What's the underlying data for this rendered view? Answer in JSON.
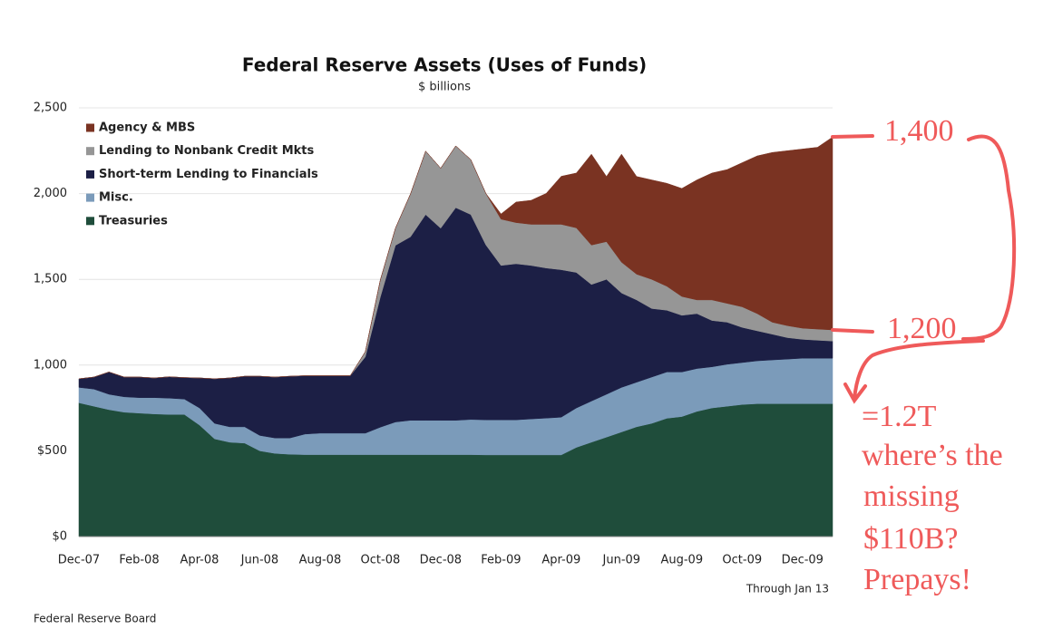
{
  "chart_data": {
    "type": "stacked-area",
    "title": "Federal Reserve Assets (Uses of Funds)",
    "subtitle": "$ billions",
    "note": "Through Jan 13",
    "source": "Federal Reserve Board",
    "categories": [
      "Dec-07",
      null,
      null,
      null,
      "Feb-08",
      null,
      null,
      null,
      "Apr-08",
      null,
      null,
      null,
      "Jun-08",
      null,
      null,
      null,
      "Aug-08",
      null,
      null,
      null,
      "Oct-08",
      null,
      null,
      null,
      "Dec-08",
      null,
      null,
      null,
      "Feb-09",
      null,
      null,
      null,
      "Apr-09",
      null,
      null,
      null,
      "Jun-09",
      null,
      null,
      null,
      "Aug-09",
      null,
      null,
      null,
      "Oct-09",
      null,
      null,
      null,
      "Dec-09",
      null,
      null
    ],
    "ylim": [
      0,
      2500
    ],
    "yticks": [
      {
        "value": 0,
        "label": "$0"
      },
      {
        "value": 500,
        "label": "$500"
      },
      {
        "value": 1000,
        "label": "1,000"
      },
      {
        "value": 1500,
        "label": "1,500"
      },
      {
        "value": 2000,
        "label": "2,000"
      },
      {
        "value": 2500,
        "label": "2,500"
      }
    ],
    "grid": true,
    "legend": "top-left",
    "series": [
      {
        "name": "Treasuries",
        "color": "#1f4d3b",
        "values": [
          780,
          760,
          740,
          725,
          720,
          715,
          712,
          712,
          650,
          570,
          550,
          545,
          500,
          485,
          480,
          478,
          478,
          478,
          478,
          478,
          478,
          478,
          478,
          478,
          478,
          478,
          478,
          476,
          476,
          476,
          476,
          476,
          476,
          520,
          550,
          580,
          610,
          640,
          660,
          690,
          700,
          730,
          750,
          760,
          770,
          775,
          775,
          775,
          775,
          775,
          775
        ]
      },
      {
        "name": "Misc.",
        "color": "#7b9bba",
        "values": [
          90,
          100,
          90,
          90,
          90,
          95,
          95,
          90,
          100,
          90,
          90,
          95,
          90,
          90,
          95,
          120,
          125,
          125,
          125,
          125,
          160,
          190,
          200,
          200,
          200,
          200,
          205,
          205,
          205,
          205,
          210,
          215,
          220,
          230,
          240,
          250,
          260,
          260,
          270,
          270,
          260,
          250,
          240,
          245,
          245,
          250,
          255,
          260,
          265,
          265,
          265
        ]
      },
      {
        "name": "Short-term Lending to Financials",
        "color": "#1c1f45",
        "values": [
          50,
          70,
          130,
          115,
          120,
          115,
          125,
          125,
          175,
          260,
          285,
          295,
          345,
          355,
          360,
          340,
          335,
          335,
          335,
          445,
          760,
          1030,
          1070,
          1200,
          1120,
          1240,
          1195,
          1020,
          900,
          910,
          895,
          875,
          860,
          790,
          680,
          670,
          550,
          480,
          400,
          360,
          330,
          320,
          270,
          245,
          205,
          175,
          150,
          125,
          110,
          105,
          100
        ]
      },
      {
        "name": "Lending to Nonbank Credit Mkts",
        "color": "#969696",
        "values": [
          0,
          0,
          0,
          0,
          0,
          0,
          0,
          0,
          0,
          0,
          0,
          0,
          0,
          0,
          0,
          0,
          0,
          0,
          0,
          30,
          100,
          100,
          250,
          370,
          350,
          360,
          320,
          300,
          270,
          240,
          240,
          255,
          265,
          260,
          230,
          220,
          180,
          150,
          170,
          140,
          110,
          80,
          120,
          110,
          120,
          100,
          70,
          70,
          65,
          65,
          65
        ]
      },
      {
        "name": "Agency & MBS",
        "color": "#7a3322",
        "values": [
          0,
          0,
          0,
          0,
          0,
          0,
          0,
          0,
          0,
          0,
          0,
          0,
          0,
          0,
          0,
          0,
          0,
          0,
          0,
          0,
          0,
          0,
          0,
          0,
          0,
          0,
          0,
          0,
          30,
          120,
          140,
          180,
          280,
          320,
          530,
          380,
          630,
          570,
          580,
          600,
          630,
          700,
          740,
          780,
          840,
          920,
          990,
          1020,
          1045,
          1060,
          1125
        ]
      }
    ]
  },
  "annotations": [
    "1,400",
    "1,200",
    "=1.2T",
    "where’s the",
    "missing",
    "$110B?",
    "Prepays!"
  ]
}
